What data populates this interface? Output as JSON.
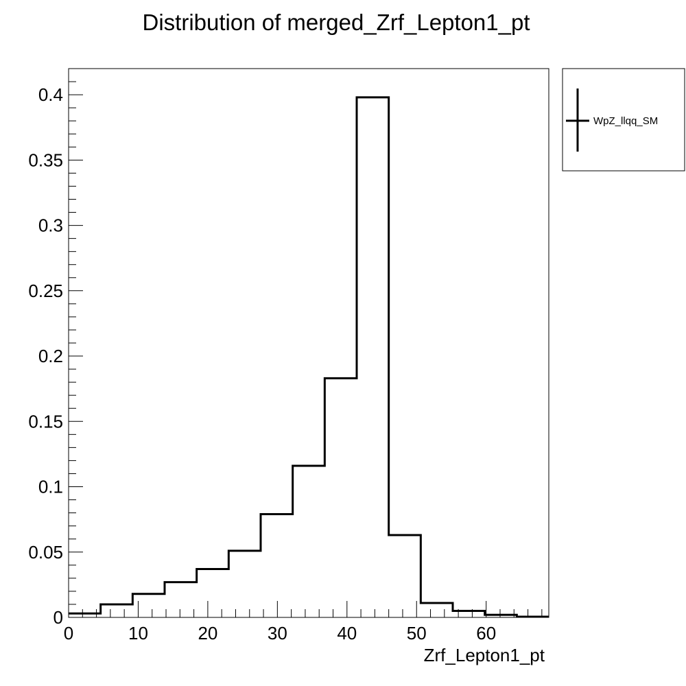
{
  "chart_data": {
    "type": "histogram",
    "title": "Distribution of merged_Zrf_Lepton1_pt",
    "xlabel": "Zrf_Lepton1_pt",
    "ylabel": "",
    "xlim": [
      0,
      69
    ],
    "ylim": [
      0,
      0.42
    ],
    "x_ticks": [
      "0",
      "10",
      "20",
      "30",
      "40",
      "50",
      "60"
    ],
    "y_ticks": [
      "0",
      "0.05",
      "0.1",
      "0.15",
      "0.2",
      "0.25",
      "0.3",
      "0.35",
      "0.4"
    ],
    "grid": false,
    "legend_position": "right",
    "series": [
      {
        "name": "WpZ_llqq_SM",
        "color": "#000000",
        "bin_edges": [
          0,
          4.6,
          9.2,
          13.8,
          18.4,
          23.0,
          27.6,
          32.2,
          36.8,
          41.4,
          46.0,
          50.6,
          55.2,
          59.8,
          64.4,
          69.0
        ],
        "values": [
          0.003,
          0.01,
          0.018,
          0.027,
          0.037,
          0.051,
          0.079,
          0.116,
          0.183,
          0.398,
          0.063,
          0.011,
          0.005,
          0.002,
          0.0005
        ]
      }
    ]
  }
}
